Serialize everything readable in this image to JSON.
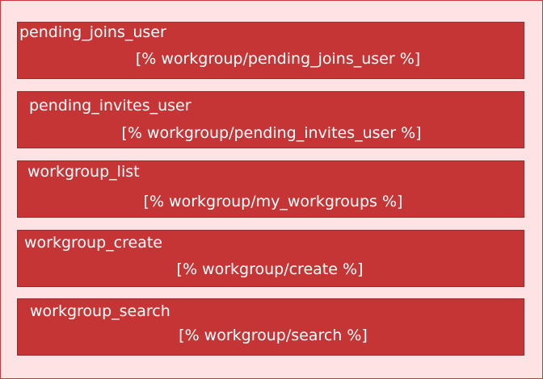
{
  "panels": [
    {
      "title": "pending_joins_user",
      "template": "[% workgroup/pending_joins_user %]"
    },
    {
      "title": "pending_invites_user",
      "template": "[% workgroup/pending_invites_user %]"
    },
    {
      "title": "workgroup_list",
      "template": "[% workgroup/my_workgroups %]"
    },
    {
      "title": "workgroup_create",
      "template": "[% workgroup/create %]"
    },
    {
      "title": "workgroup_search",
      "template": "[% workgroup/search %]"
    }
  ],
  "colors": {
    "background": "#fde3e3",
    "panel_fill": "#c53536",
    "panel_border": "#a12a2c",
    "text": "#ffffff"
  }
}
